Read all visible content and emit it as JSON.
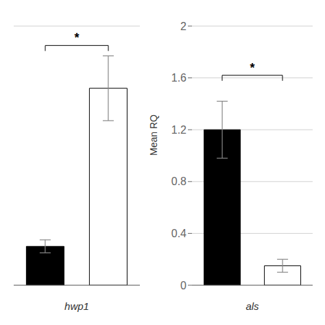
{
  "chart_data": [
    {
      "type": "bar",
      "xlabel": "hwp1",
      "categories": [
        null,
        null
      ],
      "values": [
        0.3,
        1.52
      ],
      "errors": [
        0.05,
        0.25
      ],
      "colors": [
        "black",
        "white"
      ],
      "ylim": [
        0,
        2.0
      ],
      "yticks": [
        0,
        0.4,
        0.8,
        1.2,
        1.6,
        2.0
      ],
      "grid": true,
      "tick_labels": false,
      "annotations": [
        {
          "text": "*",
          "y": 1.85
        }
      ]
    },
    {
      "type": "bar",
      "xlabel": "als",
      "ylabel": "Mean RQ",
      "categories": [
        null,
        null
      ],
      "values": [
        1.2,
        0.15
      ],
      "errors": [
        0.22,
        0.05
      ],
      "colors": [
        "black",
        "white"
      ],
      "ylim": [
        0,
        2.0
      ],
      "yticks": [
        0,
        0.4,
        0.8,
        1.2,
        1.6,
        2.0
      ],
      "grid": true,
      "tick_labels": "y",
      "annotations": [
        {
          "text": "*",
          "y": 1.62
        }
      ]
    }
  ]
}
